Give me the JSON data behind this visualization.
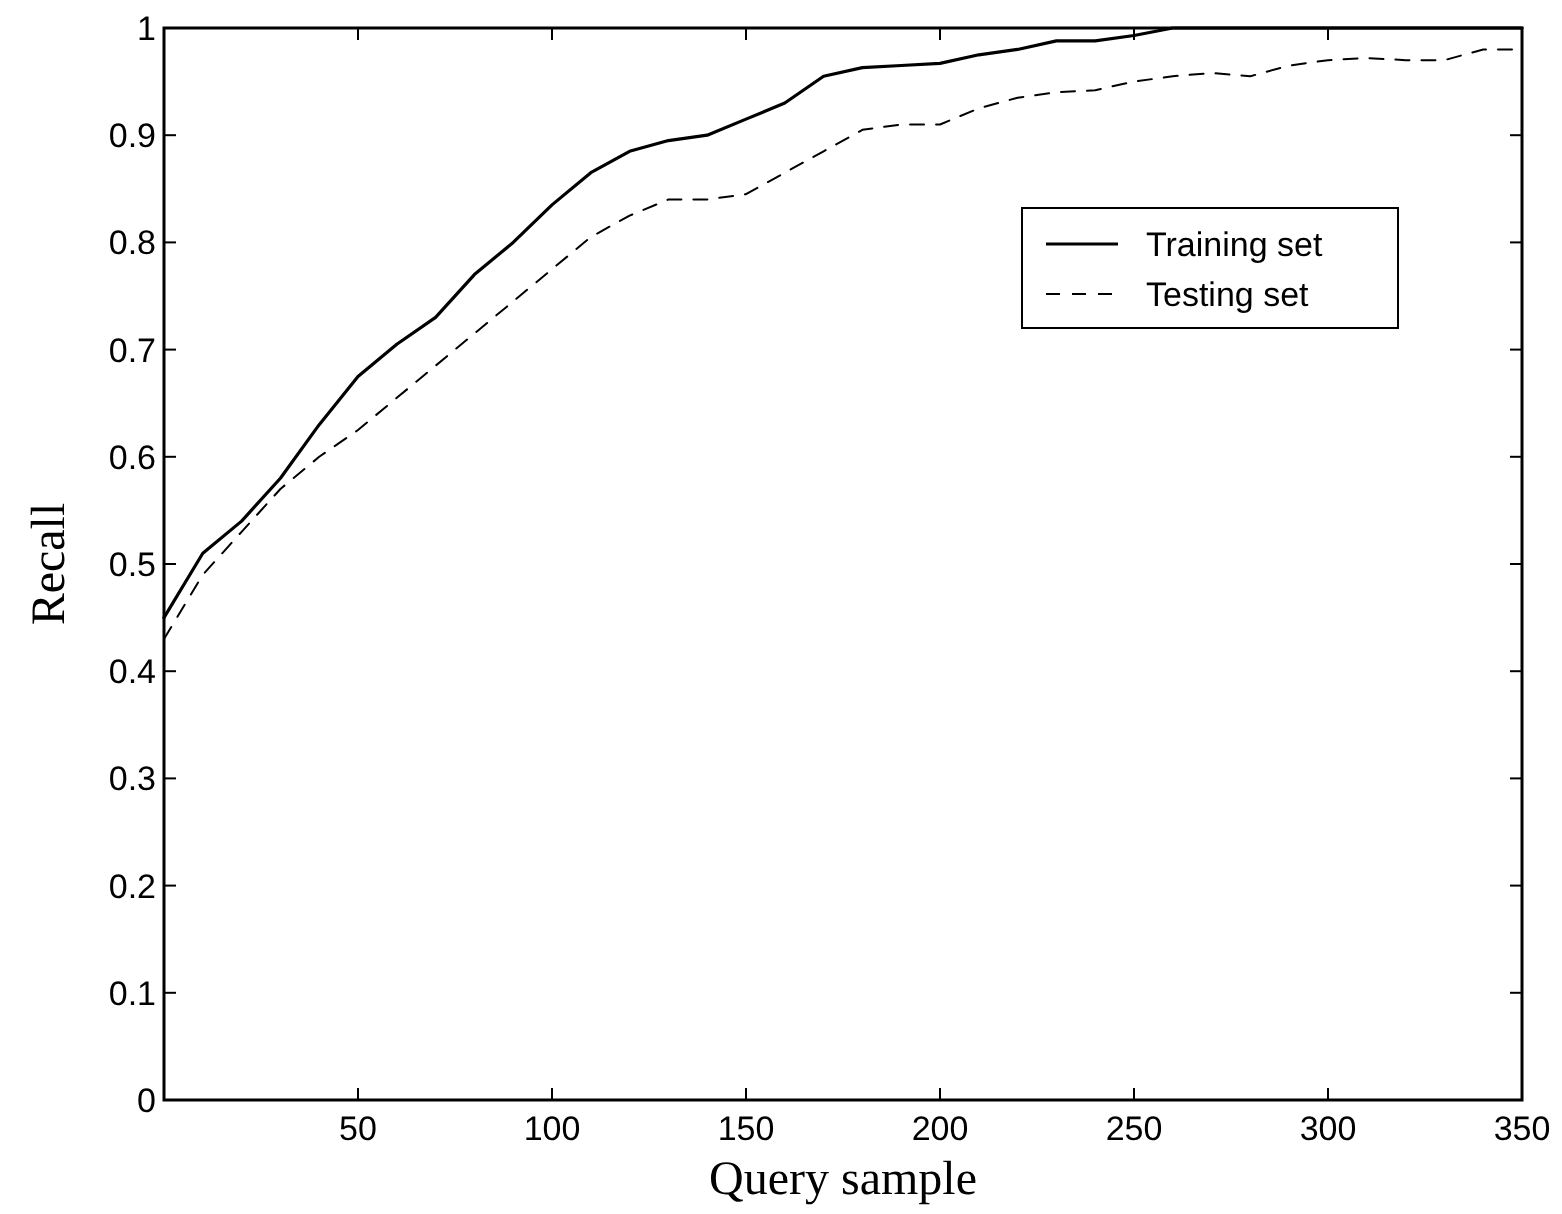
{
  "chart_data": {
    "type": "line",
    "xlabel": "Query sample",
    "ylabel": "Recall",
    "x": [
      0,
      10,
      20,
      30,
      40,
      50,
      60,
      70,
      80,
      90,
      100,
      110,
      120,
      130,
      140,
      150,
      160,
      170,
      180,
      190,
      200,
      210,
      220,
      230,
      240,
      250,
      260,
      270,
      280,
      290,
      300,
      310,
      320,
      330,
      340,
      350
    ],
    "series": [
      {
        "name": "Training set",
        "color": "#000000",
        "line_style": "solid",
        "values": [
          0.45,
          0.51,
          0.54,
          0.58,
          0.63,
          0.675,
          0.705,
          0.73,
          0.77,
          0.8,
          0.835,
          0.865,
          0.885,
          0.895,
          0.9,
          0.915,
          0.93,
          0.955,
          0.963,
          0.965,
          0.967,
          0.975,
          0.98,
          0.988,
          0.988,
          0.993,
          1,
          1,
          1,
          1,
          1,
          1,
          1,
          1,
          1,
          1
        ]
      },
      {
        "name": "Testing set",
        "color": "#000000",
        "line_style": "dashed",
        "values": [
          0.43,
          0.49,
          0.53,
          0.57,
          0.6,
          0.625,
          0.655,
          0.685,
          0.715,
          0.745,
          0.775,
          0.805,
          0.825,
          0.84,
          0.84,
          0.845,
          0.865,
          0.885,
          0.905,
          0.91,
          0.91,
          0.925,
          0.935,
          0.94,
          0.942,
          0.95,
          0.955,
          0.958,
          0.955,
          0.965,
          0.97,
          0.972,
          0.97,
          0.97,
          0.98,
          0.98
        ]
      }
    ],
    "xlim": [
      0,
      350
    ],
    "xticks": [
      50,
      100,
      150,
      200,
      250,
      300,
      350
    ],
    "ylim": [
      0,
      1
    ],
    "yticks": [
      0,
      0.1,
      0.2,
      0.3,
      0.4,
      0.5,
      0.6,
      0.7,
      0.8,
      0.9,
      1
    ],
    "grid": false,
    "legend": "top right",
    "marker": "none"
  }
}
